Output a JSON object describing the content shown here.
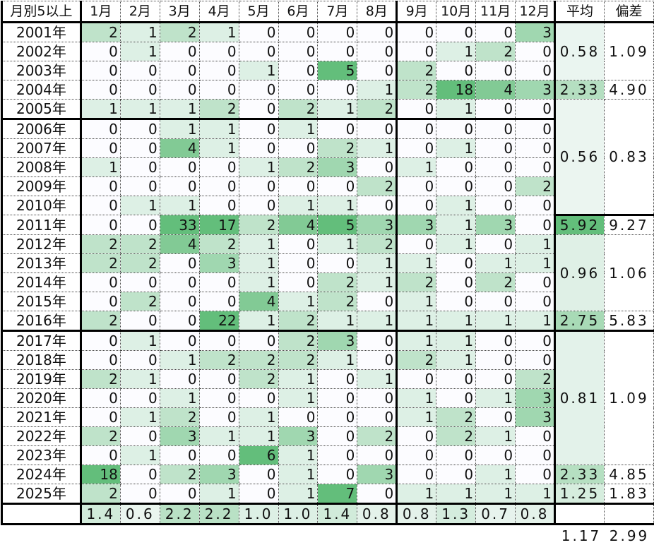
{
  "title": "月別5以上",
  "months": [
    "1月",
    "2月",
    "3月",
    "4月",
    "5月",
    "6月",
    "7月",
    "8月",
    "9月",
    "10月",
    "11月",
    "12月"
  ],
  "avg_header": "平均",
  "dev_header": "偏差",
  "rows": [
    {
      "year": "2001年",
      "values": [
        2,
        1,
        2,
        1,
        0,
        0,
        0,
        0,
        0,
        0,
        0,
        3
      ]
    },
    {
      "year": "2002年",
      "values": [
        0,
        1,
        0,
        0,
        0,
        0,
        0,
        0,
        0,
        1,
        2,
        0
      ]
    },
    {
      "year": "2003年",
      "values": [
        0,
        0,
        0,
        0,
        1,
        0,
        5,
        0,
        2,
        0,
        0,
        0
      ]
    },
    {
      "year": "2004年",
      "values": [
        0,
        0,
        0,
        0,
        0,
        0,
        0,
        1,
        2,
        18,
        4,
        3
      ]
    },
    {
      "year": "2005年",
      "values": [
        1,
        1,
        1,
        2,
        0,
        2,
        1,
        2,
        0,
        1,
        0,
        0
      ]
    },
    {
      "year": "2006年",
      "values": [
        0,
        0,
        1,
        1,
        0,
        1,
        0,
        0,
        0,
        0,
        0,
        0
      ]
    },
    {
      "year": "2007年",
      "values": [
        0,
        0,
        4,
        1,
        0,
        0,
        2,
        1,
        0,
        1,
        0,
        0
      ]
    },
    {
      "year": "2008年",
      "values": [
        1,
        0,
        0,
        0,
        1,
        2,
        3,
        0,
        1,
        0,
        0,
        0
      ]
    },
    {
      "year": "2009年",
      "values": [
        0,
        0,
        0,
        0,
        0,
        0,
        0,
        2,
        0,
        0,
        0,
        2
      ]
    },
    {
      "year": "2010年",
      "values": [
        0,
        1,
        1,
        0,
        0,
        1,
        1,
        0,
        0,
        1,
        0,
        0
      ]
    },
    {
      "year": "2011年",
      "values": [
        0,
        0,
        33,
        17,
        2,
        4,
        5,
        3,
        3,
        1,
        3,
        0
      ]
    },
    {
      "year": "2012年",
      "values": [
        2,
        2,
        4,
        2,
        1,
        0,
        1,
        2,
        0,
        1,
        0,
        1
      ]
    },
    {
      "year": "2013年",
      "values": [
        2,
        2,
        0,
        3,
        1,
        0,
        0,
        1,
        1,
        0,
        1,
        1
      ]
    },
    {
      "year": "2014年",
      "values": [
        0,
        0,
        0,
        0,
        1,
        0,
        2,
        1,
        2,
        0,
        2,
        0
      ]
    },
    {
      "year": "2015年",
      "values": [
        0,
        2,
        0,
        0,
        4,
        1,
        2,
        0,
        1,
        0,
        0,
        0
      ]
    },
    {
      "year": "2016年",
      "values": [
        2,
        0,
        0,
        22,
        1,
        2,
        1,
        1,
        1,
        1,
        1,
        1
      ]
    },
    {
      "year": "2017年",
      "values": [
        0,
        1,
        0,
        0,
        0,
        2,
        3,
        0,
        1,
        1,
        0,
        0
      ]
    },
    {
      "year": "2018年",
      "values": [
        0,
        0,
        1,
        2,
        2,
        2,
        1,
        0,
        2,
        1,
        0,
        0
      ]
    },
    {
      "year": "2019年",
      "values": [
        2,
        1,
        0,
        0,
        2,
        1,
        0,
        1,
        0,
        0,
        0,
        2
      ]
    },
    {
      "year": "2020年",
      "values": [
        0,
        0,
        1,
        0,
        0,
        1,
        0,
        0,
        1,
        0,
        1,
        3
      ]
    },
    {
      "year": "2021年",
      "values": [
        0,
        1,
        2,
        0,
        1,
        0,
        0,
        0,
        1,
        2,
        0,
        3
      ]
    },
    {
      "year": "2022年",
      "values": [
        2,
        0,
        3,
        1,
        1,
        3,
        0,
        2,
        0,
        2,
        1,
        0
      ]
    },
    {
      "year": "2023年",
      "values": [
        0,
        1,
        0,
        0,
        6,
        1,
        0,
        0,
        0,
        0,
        0,
        0
      ]
    },
    {
      "year": "2024年",
      "values": [
        18,
        0,
        2,
        3,
        0,
        1,
        0,
        3,
        0,
        0,
        1,
        0
      ]
    },
    {
      "year": "2025年",
      "values": [
        2,
        0,
        0,
        1,
        0,
        1,
        7,
        0,
        1,
        1,
        1,
        1
      ]
    }
  ],
  "groups": [
    {
      "start": 0,
      "span": 3,
      "avg": "0.58",
      "dev": "1.09"
    },
    {
      "start": 3,
      "span": 1,
      "avg": "2.33",
      "dev": "4.90"
    },
    {
      "start": 4,
      "span": 6,
      "avg": "0.56",
      "dev": "0.83"
    },
    {
      "start": 10,
      "span": 1,
      "avg": "5.92",
      "dev": "9.27"
    },
    {
      "start": 11,
      "span": 4,
      "avg": "0.96",
      "dev": "1.06"
    },
    {
      "start": 15,
      "span": 1,
      "avg": "2.75",
      "dev": "5.83"
    },
    {
      "start": 16,
      "span": 7,
      "avg": "0.81",
      "dev": "1.09"
    },
    {
      "start": 23,
      "span": 1,
      "avg": "2.33",
      "dev": "4.85"
    },
    {
      "start": 24,
      "span": 1,
      "avg": "1.25",
      "dev": "1.83"
    }
  ],
  "monthly_avg": [
    "1.4",
    "0.6",
    "2.2",
    "2.2",
    "1.0",
    "1.0",
    "1.4",
    "0.8",
    "0.8",
    "1.3",
    "0.7",
    "0.8"
  ],
  "overall_avg": "1.17",
  "overall_dev": "2.99",
  "colors": {
    "scale_low": "#fcfcff",
    "scale_high": "#63be7b"
  }
}
